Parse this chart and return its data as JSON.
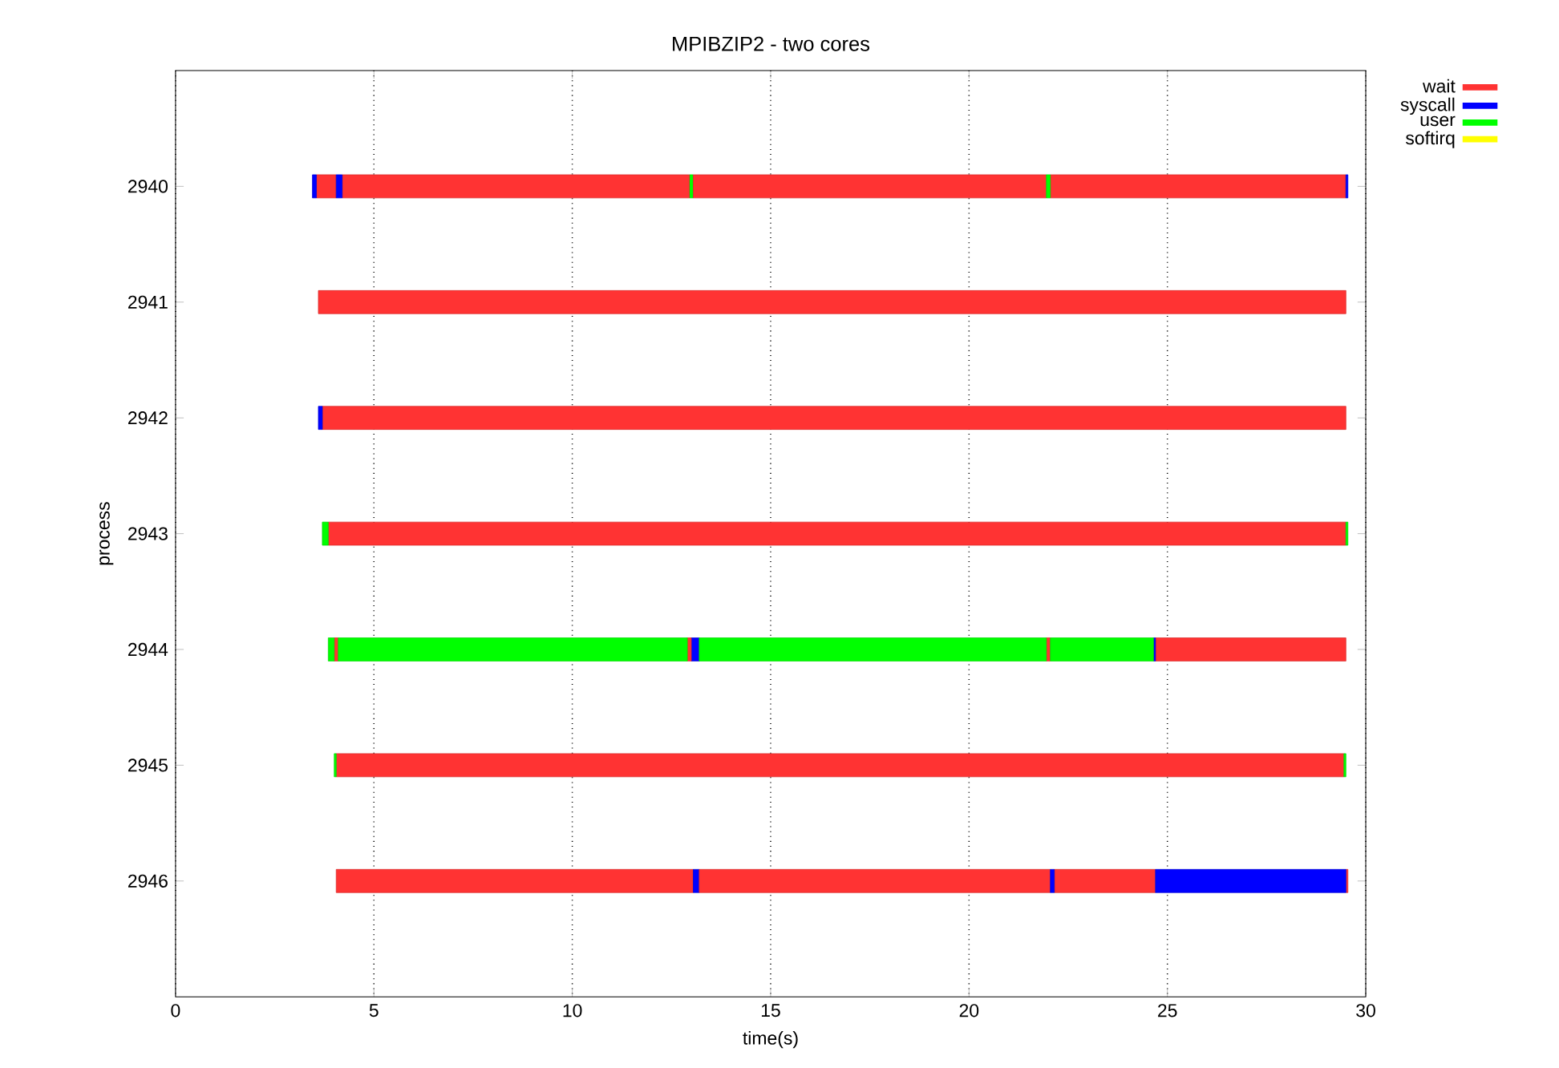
{
  "chart_data": {
    "type": "bar",
    "orientation": "horizontal",
    "title": "MPIBZIP2 - two cores",
    "xlabel": "time(s)",
    "ylabel": "process",
    "categories": [
      "2940",
      "2941",
      "2942",
      "2943",
      "2944",
      "2945",
      "2946"
    ],
    "xlim": [
      0,
      30
    ],
    "xticks": [
      0,
      5,
      10,
      15,
      20,
      25,
      30
    ],
    "grid": "x",
    "legend": "top right",
    "series": [
      {
        "name": "wait",
        "color": "#ff3333",
        "base": [
          3.55,
          3.6,
          3.7,
          3.85,
          4.0,
          4.05,
          4.05
        ],
        "values": [
          0.5,
          25.9,
          25.8,
          25.65,
          0.1,
          25.4,
          9.0
        ]
      },
      {
        "name": "syscall",
        "color": "#0000ff",
        "base": [
          3.45,
          null,
          3.6,
          null,
          13.0,
          null,
          13.05
        ],
        "values": [
          0.1,
          null,
          0.1,
          null,
          0.2,
          null,
          0.15
        ]
      },
      {
        "name": "user",
        "color": "#00ff00",
        "base": [
          12.95,
          null,
          null,
          3.7,
          3.85,
          4.0,
          null
        ],
        "values": [
          0.1,
          null,
          null,
          0.15,
          0.15,
          0.05,
          null
        ]
      },
      {
        "name": "softirq",
        "color": "#ffff00",
        "base": [
          null,
          null,
          null,
          null,
          null,
          null,
          null
        ],
        "values": [
          null,
          null,
          null,
          null,
          null,
          null,
          null
        ]
      },
      {
        "color": "#ff3333",
        "base": [
          4.2,
          null,
          null,
          null,
          12.9,
          null,
          13.2
        ],
        "values": [
          8.75,
          null,
          null,
          null,
          0.1,
          null,
          8.85
        ]
      },
      {
        "color": "#ff3333",
        "base": [
          13.05,
          null,
          null,
          null,
          21.95,
          null,
          22.15
        ],
        "values": [
          8.9,
          null,
          null,
          null,
          0.1,
          null,
          2.55
        ]
      },
      {
        "color": "#ff3333",
        "base": [
          22.05,
          null,
          null,
          null,
          24.7,
          null,
          29.5
        ],
        "values": [
          7.45,
          null,
          null,
          null,
          4.8,
          null,
          0.05
        ]
      },
      {
        "color": "#0000ff",
        "base": [
          4.05,
          null,
          null,
          null,
          24.65,
          null,
          22.05
        ],
        "values": [
          0.15,
          null,
          null,
          null,
          0.05,
          null,
          0.1
        ]
      },
      {
        "color": "#0000ff",
        "base": [
          29.5,
          null,
          null,
          null,
          null,
          null,
          24.7
        ],
        "values": [
          0.05,
          null,
          null,
          null,
          null,
          null,
          4.8
        ]
      },
      {
        "color": "#00ff00",
        "base": [
          21.95,
          null,
          null,
          29.5,
          4.1,
          29.45,
          null
        ],
        "values": [
          0.1,
          null,
          null,
          0.05,
          8.8,
          0.05,
          null
        ]
      },
      {
        "color": "#00ff00",
        "base": [
          null,
          null,
          null,
          null,
          13.2,
          null,
          null
        ],
        "values": [
          null,
          null,
          null,
          null,
          8.75,
          null,
          null
        ]
      },
      {
        "color": "#00ff00",
        "base": [
          null,
          null,
          null,
          null,
          22.05,
          null,
          null
        ],
        "values": [
          null,
          null,
          null,
          null,
          2.6,
          null,
          null
        ]
      }
    ]
  }
}
